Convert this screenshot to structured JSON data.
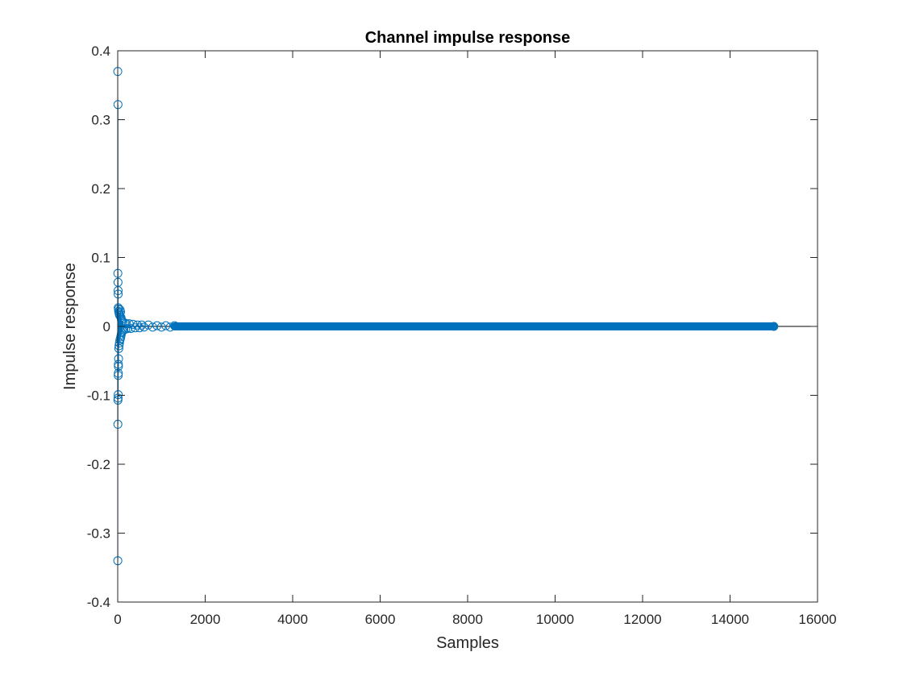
{
  "chart_data": {
    "type": "scatter",
    "plot_style": "stem",
    "title": "Channel impulse response",
    "xlabel": "Samples",
    "ylabel": "Impulse response",
    "xlim": [
      0,
      16000
    ],
    "ylim": [
      -0.4,
      0.4
    ],
    "xticks": [
      0,
      2000,
      4000,
      6000,
      8000,
      10000,
      12000,
      14000,
      16000
    ],
    "yticks": [
      -0.4,
      -0.3,
      -0.2,
      -0.1,
      0,
      0.1,
      0.2,
      0.3,
      0.4
    ],
    "xtick_labels": [
      "0",
      "2000",
      "4000",
      "6000",
      "8000",
      "10000",
      "12000",
      "14000",
      "16000"
    ],
    "ytick_labels": [
      "-0.4",
      "-0.3",
      "-0.2",
      "-0.1",
      "0",
      "0.1",
      "0.2",
      "0.3",
      "0.4"
    ],
    "grid": false,
    "box": true,
    "series_color": "#0072BD",
    "baseline_color": "#000000",
    "series": [
      {
        "x": [
          1,
          6,
          2,
          4,
          3,
          5,
          7,
          8,
          9,
          11,
          10,
          12,
          14,
          13,
          16,
          15,
          18,
          20,
          22,
          25,
          28,
          30,
          35,
          40,
          45,
          50,
          55,
          60,
          65,
          70,
          75,
          80,
          85,
          90,
          100,
          110,
          120,
          140,
          160,
          180,
          200,
          230,
          260,
          300,
          350,
          400,
          450,
          500,
          550,
          600,
          700,
          800,
          900,
          1000,
          1100,
          1200,
          1300
        ],
        "y": [
          0.37,
          0.322,
          -0.34,
          -0.142,
          0.077,
          -0.107,
          0.064,
          -0.104,
          0.052,
          -0.099,
          0.047,
          -0.071,
          -0.068,
          0.027,
          -0.058,
          -0.055,
          0.025,
          -0.047,
          0.022,
          -0.032,
          0.02,
          -0.028,
          0.018,
          -0.024,
          0.016,
          -0.02,
          0.024,
          -0.018,
          0.021,
          -0.015,
          0.013,
          -0.012,
          0.01,
          -0.009,
          0.008,
          -0.007,
          0.006,
          -0.005,
          0.005,
          -0.004,
          0.004,
          -0.003,
          0.004,
          -0.003,
          0.003,
          -0.002,
          0.002,
          -0.002,
          0.002,
          -0.001,
          0.002,
          -0.001,
          0.001,
          -0.001,
          0.001,
          -0.001,
          0.001
        ]
      }
    ],
    "dense_band": {
      "x_start": 1300,
      "x_end": 15000,
      "y": 0.0
    }
  }
}
